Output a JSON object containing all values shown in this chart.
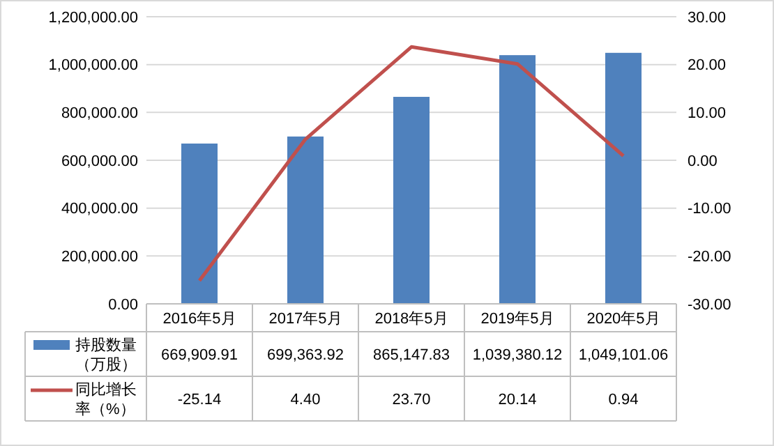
{
  "chart_data": {
    "type": "bar",
    "categories": [
      "2016年5月",
      "2017年5月",
      "2018年5月",
      "2019年5月",
      "2020年5月"
    ],
    "series": [
      {
        "name": "持股数量（万股）",
        "color": "#4f81bd",
        "values": [
          669909.91,
          699363.92,
          865147.83,
          1039380.12,
          1049101.06
        ],
        "value_labels": [
          "669,909.91",
          "699,363.92",
          "865,147.83",
          "1,039,380.12",
          "1,049,101.06"
        ]
      },
      {
        "name": "同比增长率（%）",
        "type": "line",
        "axis": "y2",
        "color": "#c0504d",
        "values": [
          -25.14,
          4.4,
          23.7,
          20.14,
          0.94
        ],
        "value_labels": [
          "-25.14",
          "4.40",
          "23.70",
          "20.14",
          "0.94"
        ]
      }
    ],
    "ylim": [
      0,
      1200000
    ],
    "yticks": [
      {
        "value": 0,
        "label": "0.00"
      },
      {
        "value": 200000,
        "label": "200,000.00"
      },
      {
        "value": 400000,
        "label": "400,000.00"
      },
      {
        "value": 600000,
        "label": "600,000.00"
      },
      {
        "value": 800000,
        "label": "800,000.00"
      },
      {
        "value": 1000000,
        "label": "1,000,000.00"
      },
      {
        "value": 1200000,
        "label": "1,200,000.00"
      }
    ],
    "y2lim": [
      -30,
      30
    ],
    "y2ticks": [
      {
        "value": -30,
        "label": "-30.00"
      },
      {
        "value": -20,
        "label": "-20.00"
      },
      {
        "value": -10,
        "label": "-10.00"
      },
      {
        "value": 0,
        "label": "0.00"
      },
      {
        "value": 10,
        "label": "10.00"
      },
      {
        "value": 20,
        "label": "20.00"
      },
      {
        "value": 30,
        "label": "30.00"
      }
    ],
    "grid": "y",
    "legend": "bottom",
    "line_style": "solid",
    "marker": "none"
  }
}
